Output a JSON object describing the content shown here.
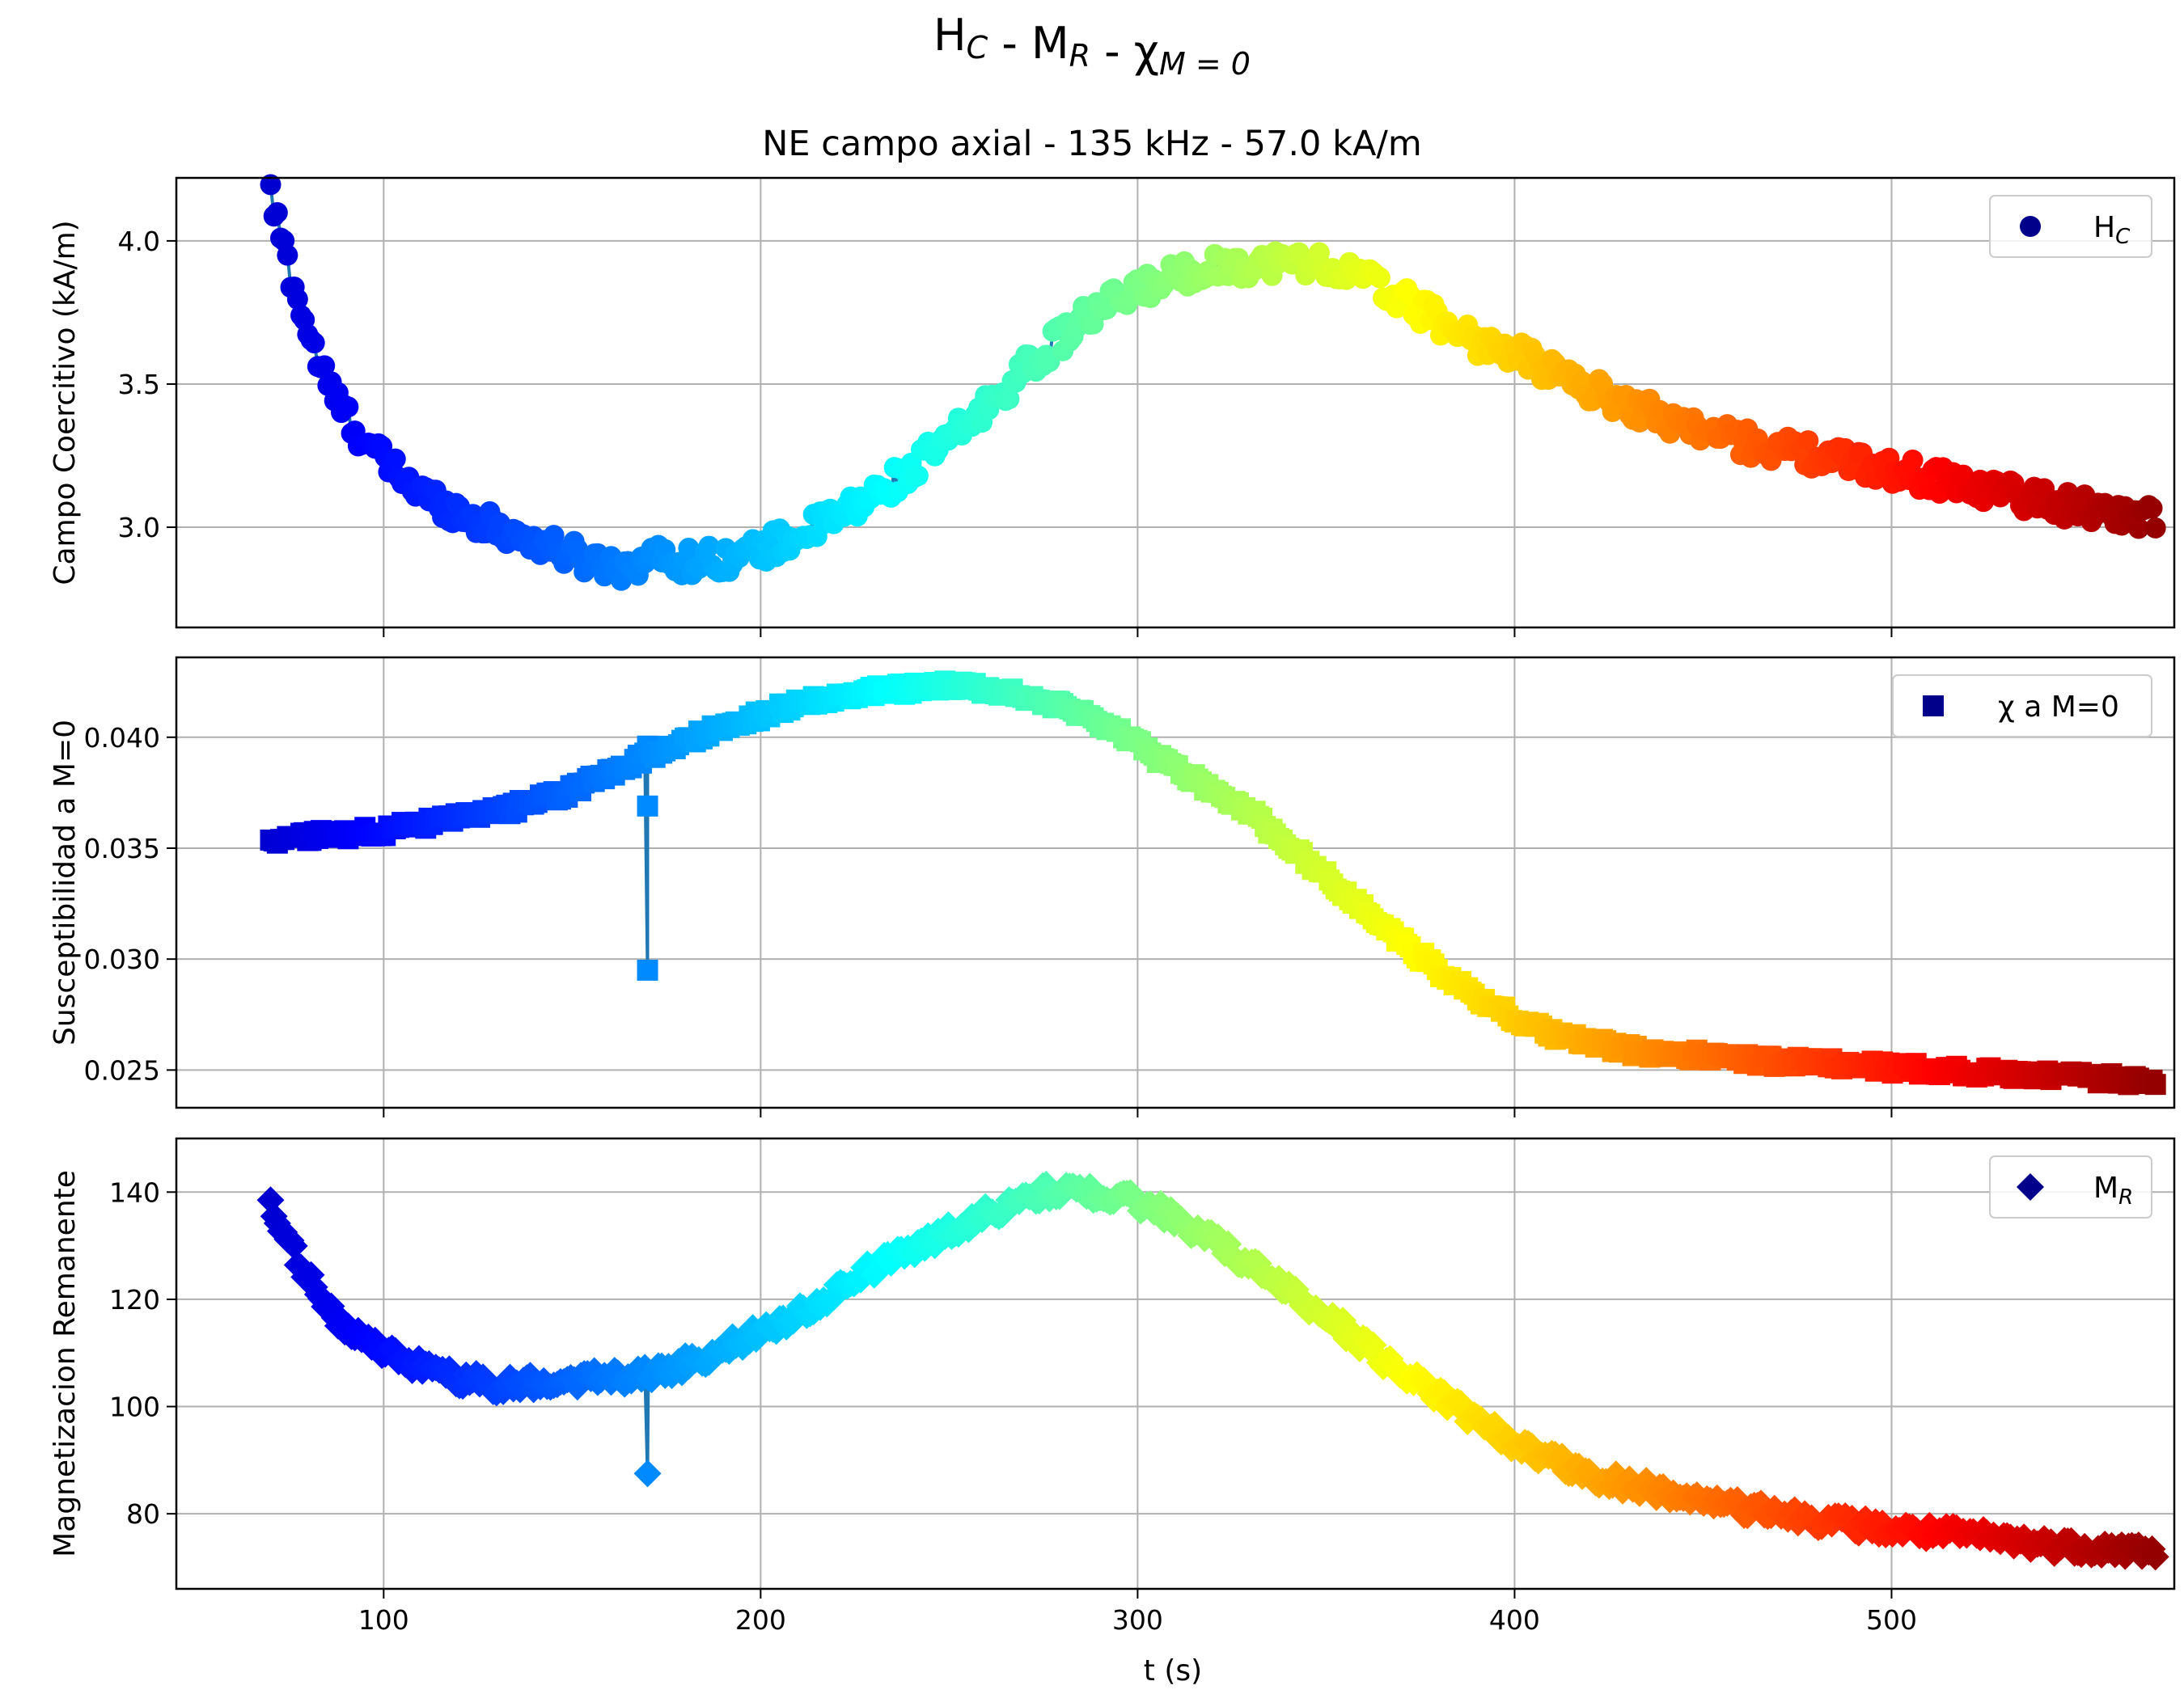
{
  "figure": {
    "suptitle_main": "H",
    "suptitle_parts": [
      {
        "text": "H",
        "sub": "C"
      },
      {
        "text": " - M",
        "sub": "R"
      },
      {
        "text": " - χ",
        "sub": "M = 0"
      }
    ],
    "subtitle": "NE campo axial - 135 kHz - 57.0 kA/m",
    "xlabel": "t (s)",
    "line_color": "#1f77b4",
    "colormap": "jet"
  },
  "chart_data": [
    {
      "type": "scatter",
      "name": "Campo Coercitivo",
      "ylabel": "Campo Coercitivo (kA/m)",
      "legend": {
        "label": "H",
        "sub": "C",
        "marker": "circle",
        "color": "#00008b"
      },
      "legend_placement": "top-right",
      "xlim": [
        45,
        575
      ],
      "ylim": [
        2.65,
        4.22
      ],
      "xticks": [
        100,
        200,
        300,
        400,
        500
      ],
      "yticks": [
        3.0,
        3.5,
        4.0
      ],
      "ytick_labels": [
        "3.0",
        "3.5",
        "4.0"
      ],
      "grid": true,
      "marker": "circle",
      "keypoints": [
        [
          70,
          4.16
        ],
        [
          73,
          4.0
        ],
        [
          76,
          3.85
        ],
        [
          80,
          3.68
        ],
        [
          85,
          3.5
        ],
        [
          92,
          3.35
        ],
        [
          100,
          3.23
        ],
        [
          110,
          3.12
        ],
        [
          125,
          3.02
        ],
        [
          140,
          2.95
        ],
        [
          155,
          2.88
        ],
        [
          165,
          2.86
        ],
        [
          170,
          2.9
        ],
        [
          180,
          2.88
        ],
        [
          195,
          2.9
        ],
        [
          210,
          2.97
        ],
        [
          225,
          3.07
        ],
        [
          240,
          3.2
        ],
        [
          255,
          3.36
        ],
        [
          270,
          3.55
        ],
        [
          285,
          3.72
        ],
        [
          300,
          3.83
        ],
        [
          315,
          3.9
        ],
        [
          330,
          3.92
        ],
        [
          345,
          3.93
        ],
        [
          360,
          3.87
        ],
        [
          375,
          3.76
        ],
        [
          390,
          3.65
        ],
        [
          405,
          3.58
        ],
        [
          420,
          3.48
        ],
        [
          440,
          3.38
        ],
        [
          460,
          3.3
        ],
        [
          480,
          3.25
        ],
        [
          500,
          3.2
        ],
        [
          520,
          3.15
        ],
        [
          545,
          3.08
        ],
        [
          570,
          3.03
        ]
      ],
      "noise": 0.05
    },
    {
      "type": "scatter",
      "name": "Susceptibilidad",
      "ylabel": "Susceptibilidad a M=0",
      "legend": {
        "label": "χ a M=0",
        "sub": "",
        "marker": "square",
        "color": "#00008b"
      },
      "legend_placement": "top-right",
      "xlim": [
        45,
        575
      ],
      "ylim": [
        0.0233,
        0.0436
      ],
      "xticks": [
        100,
        200,
        300,
        400,
        500
      ],
      "yticks": [
        0.025,
        0.03,
        0.035,
        0.04
      ],
      "ytick_labels": [
        "0.025",
        "0.030",
        "0.035",
        "0.040"
      ],
      "grid": true,
      "marker": "square",
      "keypoints": [
        [
          70,
          0.0354
        ],
        [
          80,
          0.0355
        ],
        [
          100,
          0.0358
        ],
        [
          130,
          0.0366
        ],
        [
          150,
          0.0376
        ],
        [
          170,
          0.0392
        ],
        [
          190,
          0.0405
        ],
        [
          210,
          0.0415
        ],
        [
          230,
          0.0421
        ],
        [
          250,
          0.0423
        ],
        [
          265,
          0.0421
        ],
        [
          280,
          0.0414
        ],
        [
          295,
          0.0402
        ],
        [
          310,
          0.0386
        ],
        [
          330,
          0.0366
        ],
        [
          350,
          0.0337
        ],
        [
          370,
          0.0308
        ],
        [
          390,
          0.0282
        ],
        [
          410,
          0.0266
        ],
        [
          430,
          0.0259
        ],
        [
          460,
          0.0255
        ],
        [
          500,
          0.0251
        ],
        [
          540,
          0.0248
        ],
        [
          570,
          0.0245
        ]
      ],
      "noise": 0.00025,
      "outliers": [
        [
          170,
          0.0295
        ],
        [
          170,
          0.0369
        ],
        [
          170,
          0.0396
        ]
      ]
    },
    {
      "type": "scatter",
      "name": "Magnetizacion Remanente",
      "ylabel": "Magnetizacion Remanente",
      "legend": {
        "label": "M",
        "sub": "R",
        "marker": "diamond",
        "color": "#00008b"
      },
      "legend_placement": "top-right",
      "xlim": [
        45,
        575
      ],
      "ylim": [
        66,
        150
      ],
      "xticks": [
        100,
        200,
        300,
        400,
        500
      ],
      "yticks": [
        80,
        100,
        120,
        140
      ],
      "ytick_labels": [
        "80",
        "100",
        "120",
        "140"
      ],
      "grid": true,
      "marker": "diamond",
      "keypoints": [
        [
          70,
          137
        ],
        [
          75,
          130
        ],
        [
          80,
          124
        ],
        [
          88,
          116
        ],
        [
          100,
          110
        ],
        [
          115,
          106
        ],
        [
          130,
          104
        ],
        [
          150,
          105
        ],
        [
          170,
          106
        ],
        [
          185,
          109
        ],
        [
          200,
          114
        ],
        [
          215,
          119
        ],
        [
          230,
          126
        ],
        [
          245,
          131
        ],
        [
          260,
          136
        ],
        [
          275,
          140
        ],
        [
          290,
          140
        ],
        [
          305,
          137
        ],
        [
          320,
          131
        ],
        [
          335,
          124
        ],
        [
          350,
          117
        ],
        [
          365,
          109
        ],
        [
          380,
          102
        ],
        [
          400,
          93
        ],
        [
          420,
          87
        ],
        [
          440,
          84
        ],
        [
          460,
          81
        ],
        [
          480,
          79
        ],
        [
          500,
          77
        ],
        [
          520,
          76
        ],
        [
          545,
          74
        ],
        [
          570,
          73
        ]
      ],
      "noise": 1.5,
      "outliers": [
        [
          170,
          87.5
        ]
      ]
    }
  ],
  "x_ticks_shown_on_bottom_only": [
    "100",
    "200",
    "300",
    "400",
    "500"
  ]
}
